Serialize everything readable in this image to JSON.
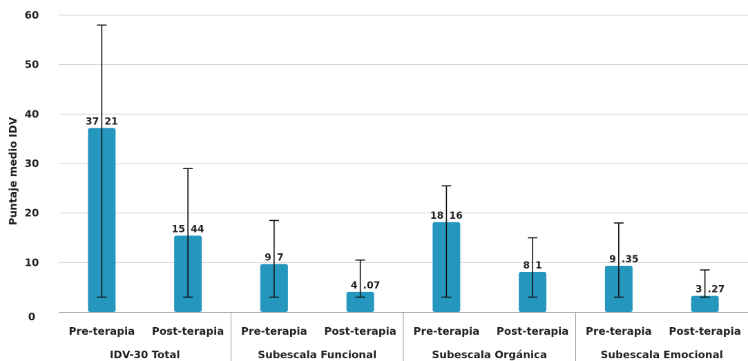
{
  "chart_data": {
    "type": "bar",
    "ylabel": "Puntaje medio IDV",
    "ylim": [
      0,
      60
    ],
    "yticks": [
      0,
      10,
      20,
      30,
      40,
      50,
      60
    ],
    "grid": true,
    "bar_color": "#2596be",
    "groups": [
      {
        "name": "IDV-30 Total",
        "categories": [
          "Pre-terapia",
          "Post-terapia"
        ]
      },
      {
        "name": "Subescala Funcional",
        "categories": [
          "Pre-terapia",
          "Post-terapia"
        ]
      },
      {
        "name": "Subescala Orgánica",
        "categories": [
          "Pre-terapia",
          "Post-terapia"
        ]
      },
      {
        "name": "Subescala Emocional",
        "categories": [
          "Pre-terapia",
          "Post-terapia"
        ]
      }
    ],
    "bars": [
      {
        "category": "Pre-terapia",
        "value": 37.21,
        "label_left": "37",
        "label_right": "21",
        "err_low": 3,
        "err_high": 58
      },
      {
        "category": "Post-terapia",
        "value": 15.44,
        "label_left": "15",
        "label_right": "44",
        "err_low": 3,
        "err_high": 29
      },
      {
        "category": "Pre-terapia",
        "value": 9.7,
        "label_left": "9",
        "label_right": "7",
        "err_low": 3,
        "err_high": 18.5
      },
      {
        "category": "Post-terapia",
        "value": 4.07,
        "label_left": "4",
        "label_right": ".07",
        "err_low": 3,
        "err_high": 10.5
      },
      {
        "category": "Pre-terapia",
        "value": 18.16,
        "label_left": "18",
        "label_right": "16",
        "err_low": 3,
        "err_high": 25.5
      },
      {
        "category": "Post-terapia",
        "value": 8.1,
        "label_left": "8",
        "label_right": "1",
        "err_low": 3,
        "err_high": 15
      },
      {
        "category": "Pre-terapia",
        "value": 9.35,
        "label_left": "9",
        "label_right": ".35",
        "err_low": 3,
        "err_high": 18
      },
      {
        "category": "Post-terapia",
        "value": 3.27,
        "label_left": "3",
        "label_right": ".27",
        "err_low": 3,
        "err_high": 8.5
      }
    ]
  }
}
